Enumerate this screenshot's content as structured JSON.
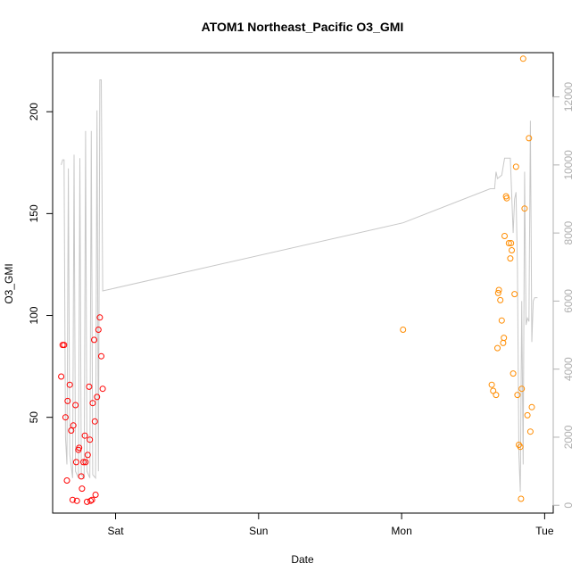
{
  "chart_data": {
    "type": "scatter",
    "title": "ATOM1 Northeast_Pacific O3_GMI",
    "xlabel": "Date",
    "ylabel": "O3_GMI",
    "x_tick_labels": [
      "Sat",
      "Sun",
      "Mon",
      "Tue"
    ],
    "x_ticks_days": [
      1,
      2,
      3,
      4
    ],
    "xlim_days": [
      0.56,
      4.06
    ],
    "ylim": [
      3,
      229
    ],
    "y_ticks": [
      50,
      100,
      150,
      200
    ],
    "right_axis": {
      "ylim": [
        -230,
        13300
      ],
      "ticks": [
        0,
        2000,
        4000,
        6000,
        8000,
        10000,
        12000
      ],
      "color": "#b0b0b0"
    },
    "grid": false,
    "colors": {
      "series_1": "#ff0000",
      "series_2": "#ff8c00",
      "altitude_line": "#c8c8c8"
    },
    "series": [
      {
        "color": "#ff0000",
        "points": [
          [
            0.62,
            70
          ],
          [
            0.63,
            85.5
          ],
          [
            0.64,
            85.5
          ],
          [
            0.65,
            50
          ],
          [
            0.66,
            19
          ],
          [
            0.665,
            58
          ],
          [
            0.68,
            66
          ],
          [
            0.69,
            43.5
          ],
          [
            0.7,
            9.5
          ],
          [
            0.705,
            46
          ],
          [
            0.72,
            56
          ],
          [
            0.725,
            28
          ],
          [
            0.73,
            9
          ],
          [
            0.74,
            34
          ],
          [
            0.745,
            35
          ],
          [
            0.76,
            21
          ],
          [
            0.765,
            15
          ],
          [
            0.775,
            28
          ],
          [
            0.785,
            41
          ],
          [
            0.79,
            28
          ],
          [
            0.8,
            8.5
          ],
          [
            0.805,
            31.5
          ],
          [
            0.815,
            65
          ],
          [
            0.82,
            39
          ],
          [
            0.825,
            9
          ],
          [
            0.835,
            9.5
          ],
          [
            0.84,
            57
          ],
          [
            0.85,
            88
          ],
          [
            0.855,
            48
          ],
          [
            0.86,
            12
          ],
          [
            0.87,
            60
          ],
          [
            0.88,
            93
          ],
          [
            0.89,
            99
          ],
          [
            0.9,
            80
          ],
          [
            0.91,
            64
          ]
        ]
      },
      {
        "color": "#ff8c00",
        "points": [
          [
            3.01,
            93
          ],
          [
            3.63,
            66
          ],
          [
            3.64,
            63
          ],
          [
            3.66,
            61
          ],
          [
            3.67,
            84
          ],
          [
            3.675,
            111
          ],
          [
            3.68,
            112.5
          ],
          [
            3.69,
            107.5
          ],
          [
            3.7,
            97.5
          ],
          [
            3.71,
            86.5
          ],
          [
            3.715,
            89
          ],
          [
            3.72,
            139
          ],
          [
            3.73,
            158.5
          ],
          [
            3.735,
            157.5
          ],
          [
            3.75,
            135.5
          ],
          [
            3.76,
            128
          ],
          [
            3.765,
            135.5
          ],
          [
            3.77,
            132
          ],
          [
            3.78,
            71.5
          ],
          [
            3.79,
            110.5
          ],
          [
            3.8,
            173
          ],
          [
            3.81,
            61
          ],
          [
            3.82,
            36.5
          ],
          [
            3.83,
            35.5
          ],
          [
            3.835,
            10
          ],
          [
            3.84,
            64
          ],
          [
            3.85,
            226
          ],
          [
            3.86,
            152.5
          ],
          [
            3.88,
            51
          ],
          [
            3.89,
            187
          ],
          [
            3.9,
            43
          ],
          [
            3.91,
            55
          ]
        ]
      }
    ],
    "altitude": [
      [
        0.62,
        10000
      ],
      [
        0.63,
        10150
      ],
      [
        0.64,
        10150
      ],
      [
        0.65,
        2000
      ],
      [
        0.66,
        1200
      ],
      [
        0.67,
        9900
      ],
      [
        0.68,
        1500
      ],
      [
        0.7,
        800
      ],
      [
        0.71,
        10300
      ],
      [
        0.72,
        1000
      ],
      [
        0.74,
        800
      ],
      [
        0.75,
        10200
      ],
      [
        0.76,
        900
      ],
      [
        0.78,
        800
      ],
      [
        0.79,
        11000
      ],
      [
        0.8,
        1000
      ],
      [
        0.82,
        800
      ],
      [
        0.83,
        11000
      ],
      [
        0.84,
        900
      ],
      [
        0.86,
        800
      ],
      [
        0.87,
        11600
      ],
      [
        0.88,
        1000
      ],
      [
        0.89,
        12500
      ],
      [
        0.9,
        12500
      ],
      [
        0.91,
        6300
      ],
      [
        3.62,
        9300
      ],
      [
        3.65,
        9300
      ],
      [
        3.66,
        9800
      ],
      [
        3.67,
        9600
      ],
      [
        3.7,
        9700
      ],
      [
        3.72,
        10200
      ],
      [
        3.76,
        10200
      ],
      [
        3.78,
        8000
      ],
      [
        3.79,
        9000
      ],
      [
        3.8,
        9200
      ],
      [
        3.81,
        7000
      ],
      [
        3.82,
        1500
      ],
      [
        3.83,
        400
      ],
      [
        3.84,
        6000
      ],
      [
        3.85,
        1200
      ],
      [
        3.86,
        9800
      ],
      [
        3.87,
        5300
      ],
      [
        3.88,
        5500
      ],
      [
        3.89,
        5400
      ],
      [
        3.9,
        11300
      ],
      [
        3.91,
        4800
      ],
      [
        3.92,
        6000
      ],
      [
        3.93,
        6100
      ],
      [
        3.94,
        6100
      ],
      [
        3.01,
        8300
      ],
      [
        3.95,
        6100
      ]
    ]
  }
}
